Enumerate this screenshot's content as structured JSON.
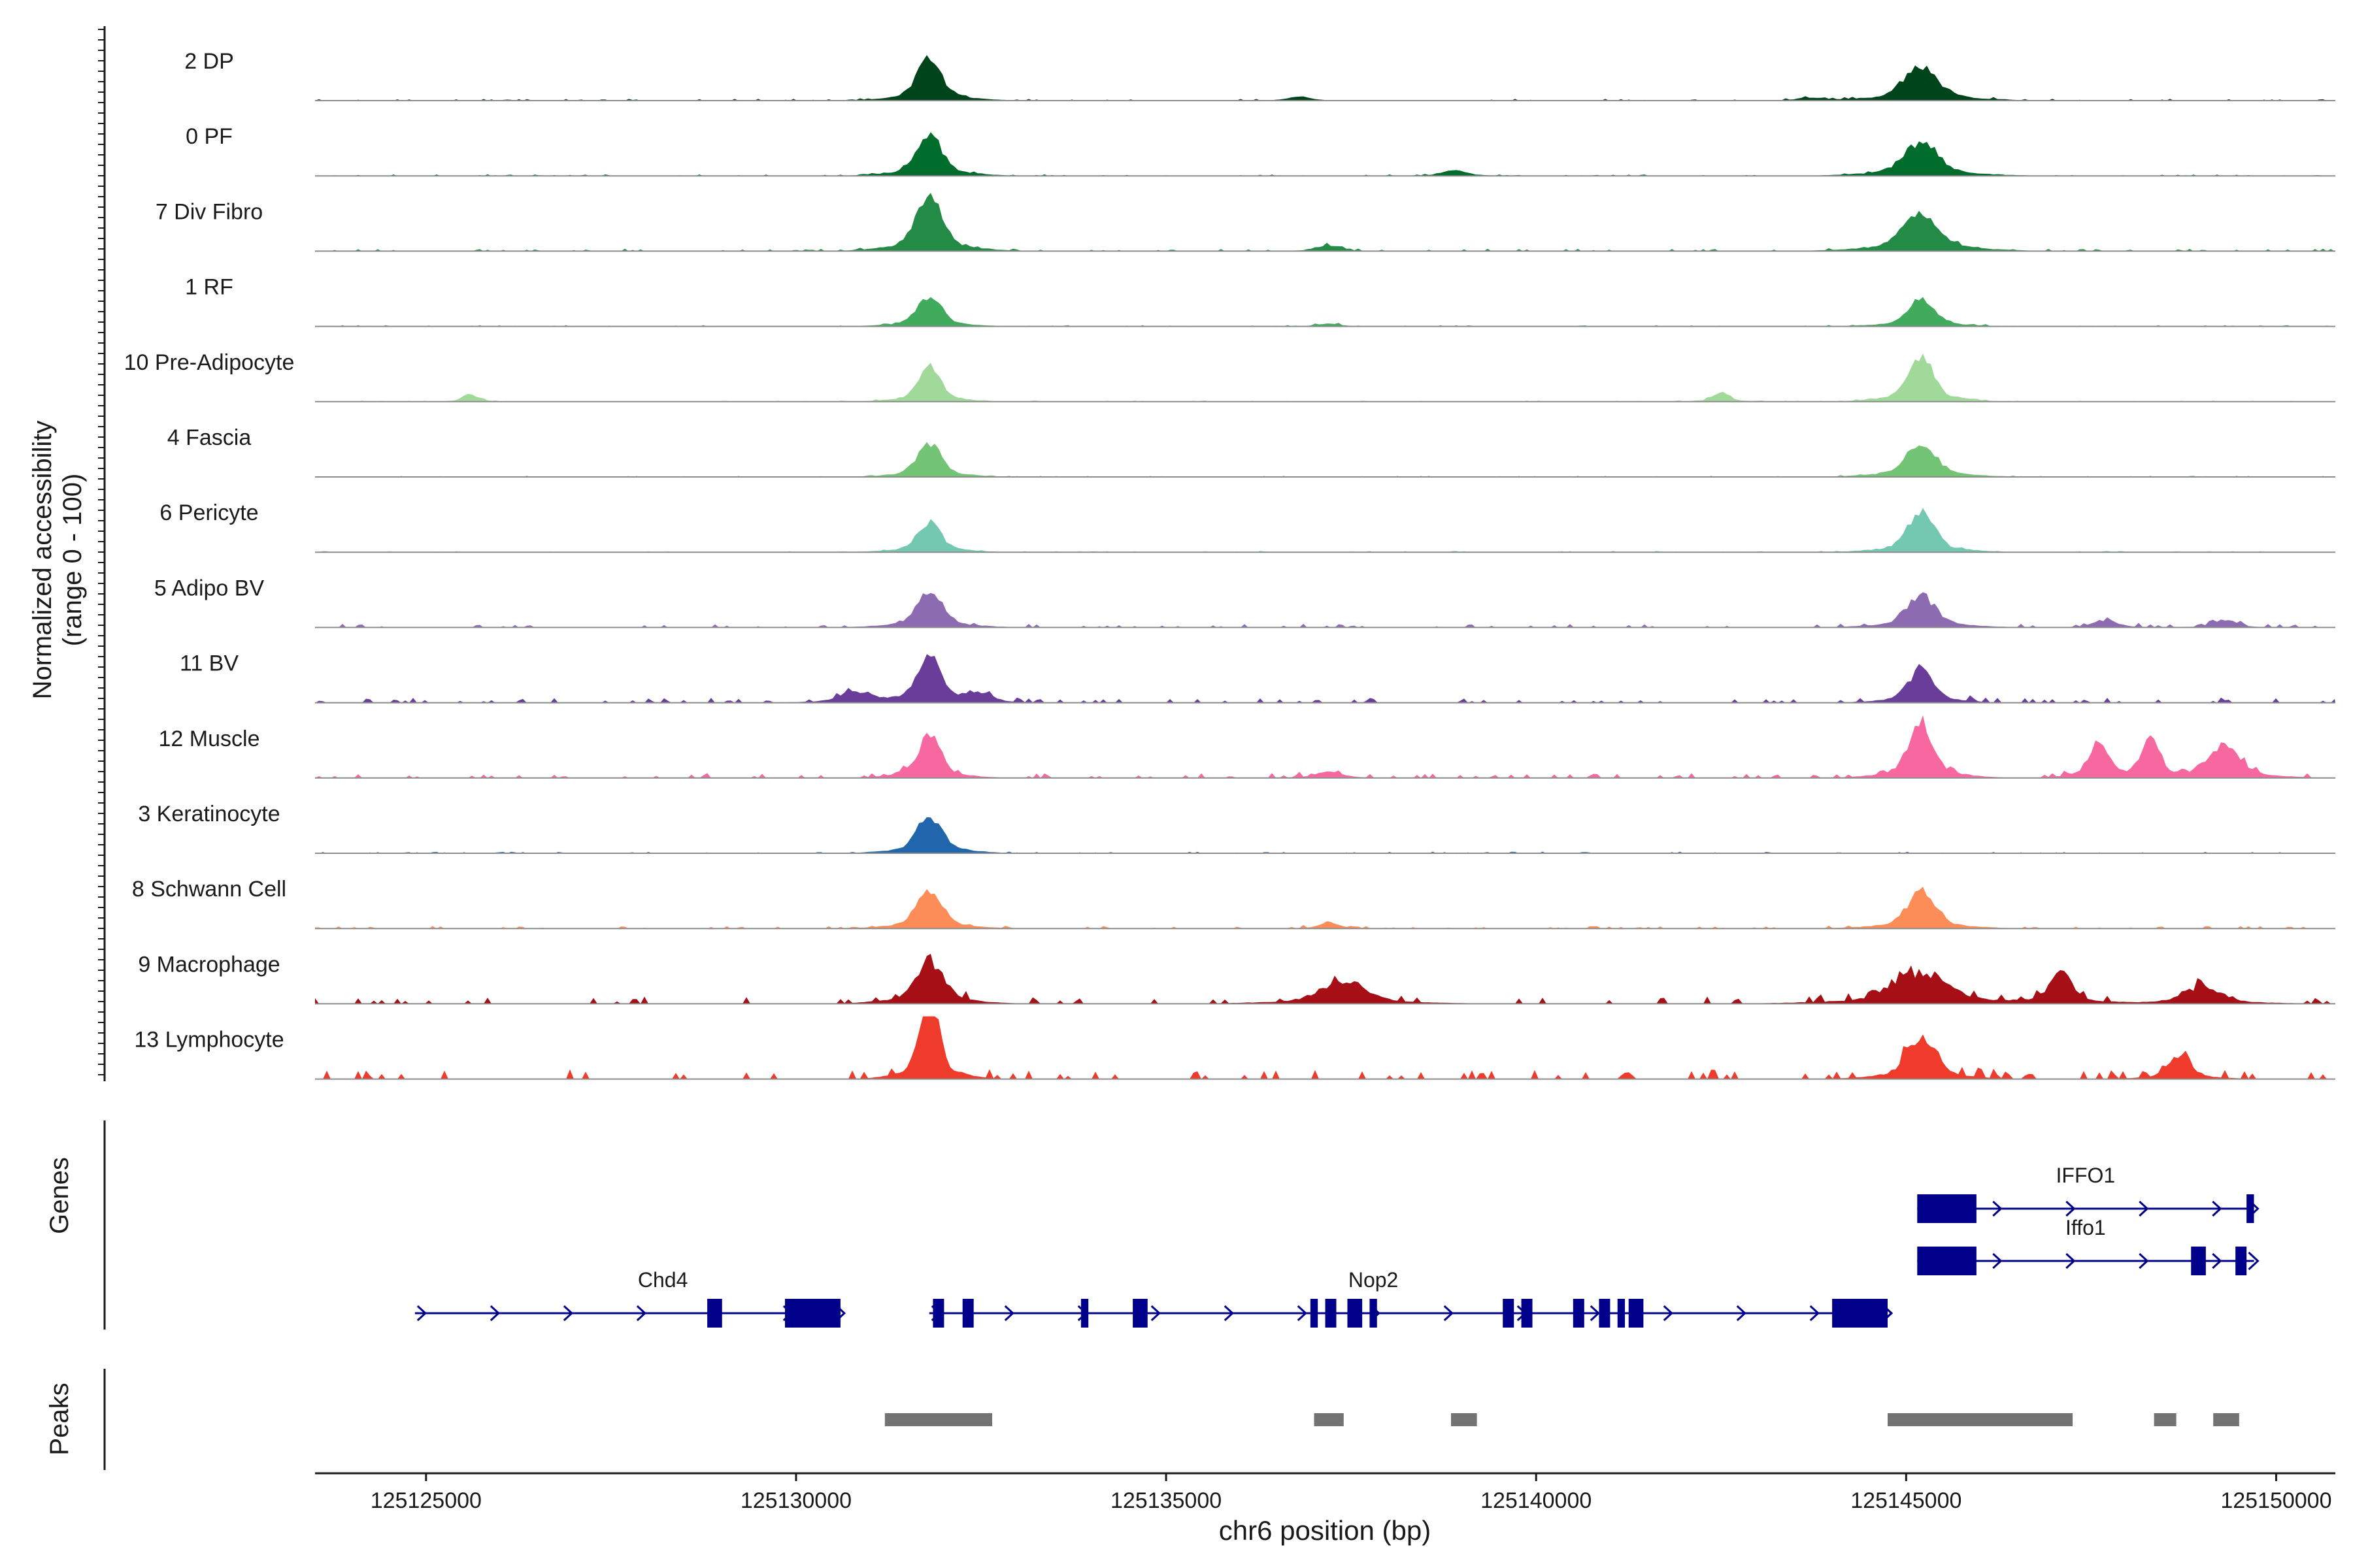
{
  "chart_data": {
    "type": "area",
    "title": "",
    "xlabel": "chr6 position (bp)",
    "ylabel": "Normalized accessibility",
    "ylabel_range": "(range 0 - 100)",
    "xlim": [
      125123500,
      125150800
    ],
    "ylim": [
      0,
      100
    ],
    "x_ticks": [
      125125000,
      125130000,
      125135000,
      125140000,
      125145000,
      125150000
    ],
    "x_tick_labels": [
      "125125000",
      "125130000",
      "125135000",
      "125140000",
      "125145000",
      "125150000"
    ],
    "tracks": [
      {
        "name": "2 DP",
        "color": "#00441b",
        "peaks": [
          [
            125131800,
            55,
            160
          ],
          [
            125145200,
            45,
            220
          ],
          [
            125136800,
            5,
            150
          ],
          [
            125143700,
            4,
            150
          ]
        ],
        "bg": 1.8
      },
      {
        "name": "0 PF",
        "color": "#006d2c",
        "peaks": [
          [
            125131800,
            55,
            160
          ],
          [
            125145200,
            45,
            220
          ],
          [
            125138900,
            8,
            150
          ]
        ],
        "bg": 1.5
      },
      {
        "name": "7 Div Fibro",
        "color": "#238b45",
        "peaks": [
          [
            125131800,
            72,
            170
          ],
          [
            125145200,
            52,
            230
          ],
          [
            125137200,
            8,
            150
          ]
        ],
        "bg": 2.5
      },
      {
        "name": "1 RF",
        "color": "#41ab5d",
        "peaks": [
          [
            125131800,
            40,
            150
          ],
          [
            125145200,
            35,
            170
          ],
          [
            125137200,
            4,
            140
          ]
        ],
        "bg": 1.3
      },
      {
        "name": "10 Pre-Adipocyte",
        "color": "#a1d99b",
        "peaks": [
          [
            125131800,
            48,
            140
          ],
          [
            125145200,
            60,
            160
          ],
          [
            125142500,
            14,
            100
          ],
          [
            125125600,
            10,
            100
          ]
        ],
        "bg": 1.2
      },
      {
        "name": "4 Fascia",
        "color": "#74c476",
        "peaks": [
          [
            125131800,
            45,
            150
          ],
          [
            125145200,
            46,
            190
          ]
        ],
        "bg": 1.2
      },
      {
        "name": "6 Pericyte",
        "color": "#74c8b2",
        "peaks": [
          [
            125131800,
            40,
            150
          ],
          [
            125145200,
            55,
            170
          ]
        ],
        "bg": 1.2
      },
      {
        "name": "5 Adipo BV",
        "color": "#8c6bb1",
        "peaks": [
          [
            125131800,
            45,
            170
          ],
          [
            125145200,
            42,
            190
          ],
          [
            125147700,
            10,
            150
          ],
          [
            125149300,
            11,
            140
          ]
        ],
        "bg": 3.5
      },
      {
        "name": "11 BV",
        "color": "#6a3d9a",
        "peaks": [
          [
            125131800,
            70,
            140
          ],
          [
            125145200,
            45,
            160
          ],
          [
            125130800,
            15,
            200
          ],
          [
            125132500,
            12,
            150
          ]
        ],
        "bg": 5
      },
      {
        "name": "12 Muscle",
        "color": "#f768a1",
        "peaks": [
          [
            125131800,
            60,
            140
          ],
          [
            125145200,
            72,
            160
          ],
          [
            125147600,
            50,
            120
          ],
          [
            125148300,
            50,
            110
          ],
          [
            125149300,
            45,
            200
          ],
          [
            125137200,
            10,
            150
          ]
        ],
        "bg": 5
      },
      {
        "name": "3 Keratinocyte",
        "color": "#2166ac",
        "peaks": [
          [
            125131800,
            50,
            160
          ]
        ],
        "bg": 1.5
      },
      {
        "name": "8 Schwann Cell",
        "color": "#fc8d59",
        "peaks": [
          [
            125131800,
            52,
            160
          ],
          [
            125145200,
            50,
            180
          ],
          [
            125137200,
            9,
            120
          ]
        ],
        "bg": 2.5
      },
      {
        "name": "9 Macrophage",
        "color": "#a50f15",
        "peaks": [
          [
            125131800,
            58,
            180
          ],
          [
            125137400,
            30,
            300
          ],
          [
            125145200,
            42,
            350
          ],
          [
            125147100,
            40,
            150
          ],
          [
            125149000,
            22,
            250
          ]
        ],
        "bg": 8
      },
      {
        "name": "13 Lymphocyte",
        "color": "#ef3b2c",
        "peaks": [
          [
            125131800,
            115,
            120
          ],
          [
            125145200,
            58,
            180
          ],
          [
            125148700,
            30,
            150
          ]
        ],
        "bg": 10
      }
    ],
    "genes": {
      "track_label": "Genes",
      "items": [
        {
          "name": "IFFO1",
          "start": 125145150,
          "end": 125149700,
          "strand": "+",
          "exons": [
            [
              125145150,
              125145950
            ],
            [
              125149600,
              125149700
            ]
          ]
        },
        {
          "name": "Iffo1",
          "start": 125145150,
          "end": 125149700,
          "strand": "+",
          "exons": [
            [
              125145150,
              125145950
            ],
            [
              125148850,
              125149050
            ],
            [
              125149450,
              125149600
            ]
          ]
        },
        {
          "name": "Chd4",
          "start": 125124850,
          "end": 125130600,
          "strand": "+",
          "exons": [
            [
              125128800,
              125129000
            ],
            [
              125129850,
              125130600
            ]
          ]
        },
        {
          "name": "Nop2",
          "start": 125131800,
          "end": 125144750,
          "strand": "+",
          "exons": [
            [
              125131850,
              125132000
            ],
            [
              125132250,
              125132400
            ],
            [
              125133850,
              125133950
            ],
            [
              125134550,
              125134750
            ],
            [
              125136950,
              125137050
            ],
            [
              125137150,
              125137300
            ],
            [
              125137450,
              125137650
            ],
            [
              125137750,
              125137850
            ],
            [
              125139550,
              125139700
            ],
            [
              125139800,
              125139950
            ],
            [
              125140500,
              125140650
            ],
            [
              125140850,
              125141000
            ],
            [
              125141100,
              125141200
            ],
            [
              125141250,
              125141450
            ],
            [
              125144000,
              125144750
            ]
          ]
        }
      ]
    },
    "peaks": {
      "track_label": "Peaks",
      "regions": [
        [
          125131200,
          125132650
        ],
        [
          125137000,
          125137400
        ],
        [
          125138850,
          125139200
        ],
        [
          125144750,
          125147250
        ],
        [
          125148350,
          125148650
        ],
        [
          125149150,
          125149500
        ]
      ]
    },
    "colors": {
      "gene": "#00008b",
      "peak_region": "#737373",
      "baseline": "#8c8c8c",
      "axis": "#1a1a1a"
    }
  }
}
